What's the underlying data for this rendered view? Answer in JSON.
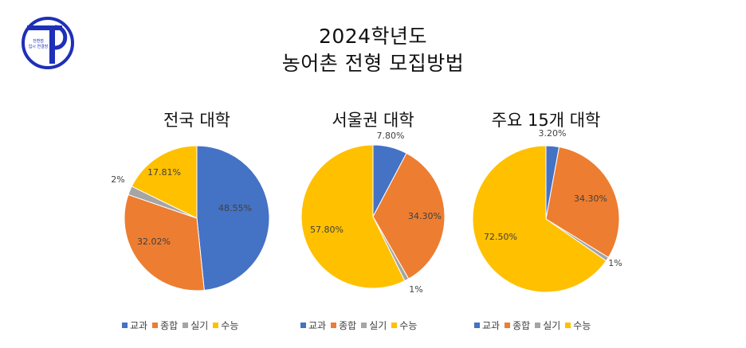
{
  "title": [
    "2024학년도",
    "농어촌 전형 모집방법"
  ],
  "logo": {
    "text_line1": "전환점",
    "text_line2": "입시 연결망"
  },
  "colors": {
    "교과": "#4472C4",
    "종합": "#ED7D31",
    "실기": "#A5A5A5",
    "수능": "#FFC000",
    "logo_blue": "#1E2FB8"
  },
  "legend": [
    "교과",
    "종합",
    "실기",
    "수능"
  ],
  "chart_data": [
    {
      "type": "pie",
      "title": "전국 대학",
      "categories": [
        "교과",
        "종합",
        "실기",
        "수능"
      ],
      "values": [
        48.55,
        32.02,
        2,
        17.81
      ],
      "labels": [
        "48.55%",
        "32.02%",
        "2%",
        "17.81%"
      ],
      "start_angle_deg": 0,
      "legend_position": "bottom"
    },
    {
      "type": "pie",
      "title": "서울권 대학",
      "categories": [
        "교과",
        "종합",
        "실기",
        "수능"
      ],
      "values": [
        7.8,
        34.3,
        1,
        57.8
      ],
      "labels": [
        "7.80%",
        "34.30%",
        "1%",
        "57.80%"
      ],
      "start_angle_deg": 0,
      "legend_position": "bottom"
    },
    {
      "type": "pie",
      "title": "주요 15개 대학",
      "categories": [
        "교과",
        "종합",
        "실기",
        "수능"
      ],
      "values": [
        3.2,
        34.3,
        1,
        72.5
      ],
      "labels": [
        "3.20%",
        "34.30%",
        "1%",
        "72.50%"
      ],
      "start_angle_deg": 0,
      "legend_position": "bottom"
    }
  ]
}
